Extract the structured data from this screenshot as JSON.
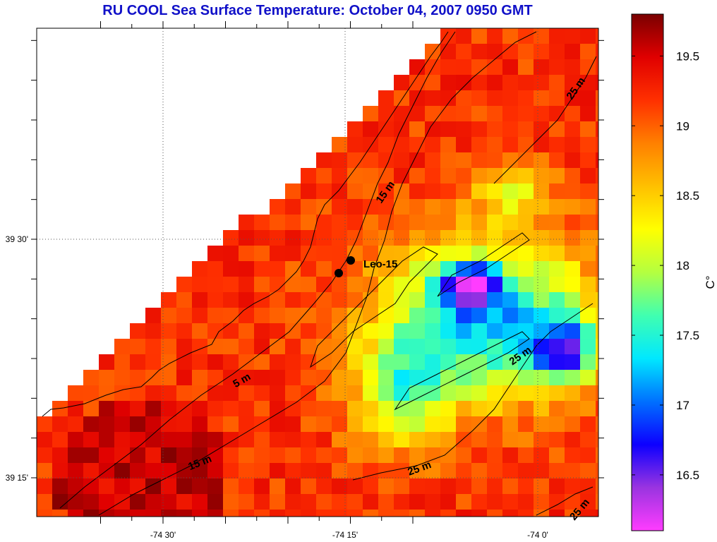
{
  "title": "RU COOL  Sea Surface Temperature:  October 04, 2007 0950 GMT",
  "map": {
    "lon_labels": [
      "-74 30'",
      "-74 15'",
      "-74 0'"
    ],
    "lat_labels": [
      "39 30'",
      "39 15'"
    ],
    "site_label": "Leo-15",
    "contour_labels": [
      "25 m",
      "15 m",
      "5 m",
      "25 m",
      "15 m",
      "25 m",
      "25 m"
    ]
  },
  "colorbar": {
    "unit": "C°",
    "tick_labels": [
      "19.5",
      "19",
      "18.5",
      "18",
      "17.5",
      "17",
      "16.5"
    ],
    "tick_values": [
      19.5,
      19.0,
      18.5,
      18.0,
      17.5,
      17.0,
      16.5
    ],
    "range": [
      16.1,
      19.8
    ],
    "colormap": [
      "#ff3cff",
      "#9a34e0",
      "#0d00ff",
      "#0070ff",
      "#00e8ff",
      "#40ffb0",
      "#b4ff40",
      "#ffff00",
      "#ffc000",
      "#ff8000",
      "#ff3000",
      "#e00000",
      "#7a0000"
    ]
  },
  "colors": {
    "title": "#1010c8",
    "land": "#ffffff",
    "frame": "#000000"
  }
}
